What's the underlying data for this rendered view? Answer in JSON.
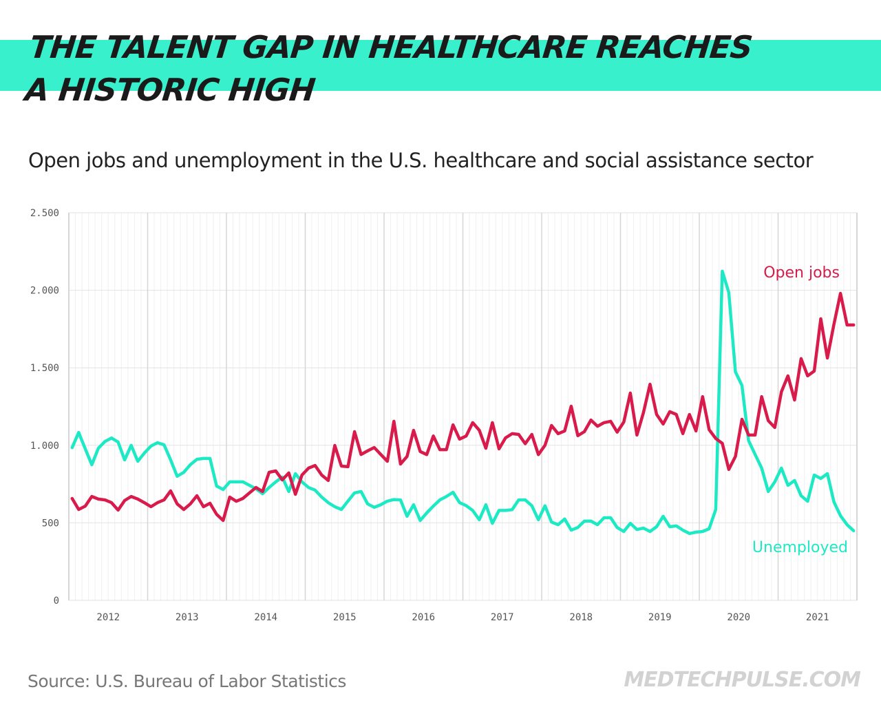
{
  "header": {
    "title_line1": "THE TALENT GAP IN HEALTHCARE REACHES",
    "title_line2": "A HISTORIC HIGH",
    "subtitle": "Open jobs and unemployment in the U.S. healthcare and social assistance sector"
  },
  "footer": {
    "source": "Source: U.S. Bureau of Labor Statistics",
    "brand": "MEDTECHPULSE.COM"
  },
  "colors": {
    "accent_band": "#39f0cc",
    "open_jobs": "#d81b4a",
    "unemployed": "#1de9c4"
  },
  "chart_data": {
    "type": "line",
    "title": "Open jobs and unemployment in the U.S. healthcare and social assistance sector",
    "xlabel": "",
    "ylabel": "",
    "x_start": "2012-01",
    "x_frequency": "monthly",
    "x_tick_labels": [
      "2012",
      "2013",
      "2014",
      "2015",
      "2016",
      "2017",
      "2018",
      "2019",
      "2020",
      "2021"
    ],
    "y_tick_labels": [
      "0",
      "500",
      "1.000",
      "1.500",
      "2.000",
      "2.500"
    ],
    "y_ticks": [
      0,
      500,
      1000,
      1500,
      2000,
      2500
    ],
    "ylim": [
      0,
      2500
    ],
    "grid": true,
    "series": [
      {
        "name": "Open jobs",
        "label_position": "top-right",
        "values": [
          657,
          586,
          608,
          670,
          653,
          648,
          630,
          582,
          644,
          670,
          653,
          630,
          604,
          630,
          648,
          706,
          622,
          586,
          622,
          675,
          604,
          626,
          555,
          515,
          666,
          639,
          657,
          693,
          728,
          702,
          826,
          835,
          777,
          822,
          684,
          808,
          853,
          870,
          808,
          773,
          999,
          866,
          862,
          1088,
          941,
          964,
          986,
          941,
          897,
          1155,
          879,
          928,
          1097,
          960,
          940,
          1060,
          972,
          972,
          1132,
          1040,
          1060,
          1146,
          1097,
          981,
          1146,
          977,
          1048,
          1075,
          1070,
          1010,
          1070,
          940,
          1000,
          1128,
          1075,
          1093,
          1252,
          1062,
          1088,
          1163,
          1123,
          1146,
          1155,
          1085,
          1150,
          1337,
          1066,
          1212,
          1394,
          1199,
          1137,
          1217,
          1199,
          1075,
          1199,
          1093,
          1314,
          1101,
          1044,
          1013,
          844,
          928,
          1168,
          1066,
          1066,
          1314,
          1159,
          1115,
          1345,
          1448,
          1292,
          1559,
          1448,
          1479,
          1816,
          1563,
          1780,
          1980,
          1776,
          1776
        ]
      },
      {
        "name": "Unemployed",
        "label_position": "bottom-right",
        "values": [
          985,
          1083,
          977,
          875,
          981,
          1025,
          1047,
          1021,
          906,
          1000,
          897,
          950,
          995,
          1017,
          1003,
          906,
          800,
          826,
          875,
          910,
          915,
          915,
          737,
          715,
          764,
          764,
          764,
          742,
          720,
          688,
          728,
          764,
          795,
          702,
          817,
          764,
          728,
          711,
          666,
          630,
          604,
          586,
          640,
          693,
          702,
          622,
          600,
          617,
          640,
          650,
          648,
          542,
          617,
          515,
          564,
          608,
          648,
          670,
          697,
          630,
          611,
          580,
          520,
          617,
          497,
          580,
          580,
          585,
          648,
          648,
          610,
          520,
          610,
          505,
          488,
          525,
          453,
          470,
          511,
          511,
          488,
          533,
          533,
          470,
          444,
          497,
          457,
          466,
          444,
          475,
          542,
          475,
          480,
          453,
          431,
          440,
          444,
          462,
          586,
          2123,
          1985,
          1474,
          1386,
          1030,
          941,
          853,
          702,
          764,
          853,
          742,
          773,
          675,
          639,
          808,
          786,
          817,
          635,
          546,
          488,
          449
        ]
      }
    ]
  }
}
